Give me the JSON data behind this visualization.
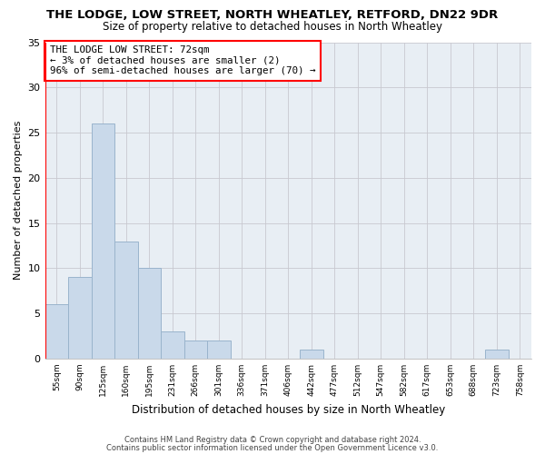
{
  "title": "THE LODGE, LOW STREET, NORTH WHEATLEY, RETFORD, DN22 9DR",
  "subtitle": "Size of property relative to detached houses in North Wheatley",
  "xlabel": "Distribution of detached houses by size in North Wheatley",
  "ylabel": "Number of detached properties",
  "categories": [
    "55sqm",
    "90sqm",
    "125sqm",
    "160sqm",
    "195sqm",
    "231sqm",
    "266sqm",
    "301sqm",
    "336sqm",
    "371sqm",
    "406sqm",
    "442sqm",
    "477sqm",
    "512sqm",
    "547sqm",
    "582sqm",
    "617sqm",
    "653sqm",
    "688sqm",
    "723sqm",
    "758sqm"
  ],
  "values": [
    6,
    9,
    26,
    13,
    10,
    3,
    2,
    2,
    0,
    0,
    0,
    1,
    0,
    0,
    0,
    0,
    0,
    0,
    0,
    1,
    0
  ],
  "bar_color": "#c9d9ea",
  "bar_edge_color": "#9ab4cc",
  "annotation_text_line1": "THE LODGE LOW STREET: 72sqm",
  "annotation_text_line2": "← 3% of detached houses are smaller (2)",
  "annotation_text_line3": "96% of semi-detached houses are larger (70) →",
  "annotation_box_facecolor": "white",
  "annotation_box_edgecolor": "red",
  "vline_color": "red",
  "ylim": [
    0,
    35
  ],
  "yticks": [
    0,
    5,
    10,
    15,
    20,
    25,
    30,
    35
  ],
  "grid_color": "#c8c8d0",
  "background_color": "#e8eef4",
  "title_fontsize": 9.5,
  "subtitle_fontsize": 8.5,
  "footer_line1": "Contains HM Land Registry data © Crown copyright and database right 2024.",
  "footer_line2": "Contains public sector information licensed under the Open Government Licence v3.0."
}
